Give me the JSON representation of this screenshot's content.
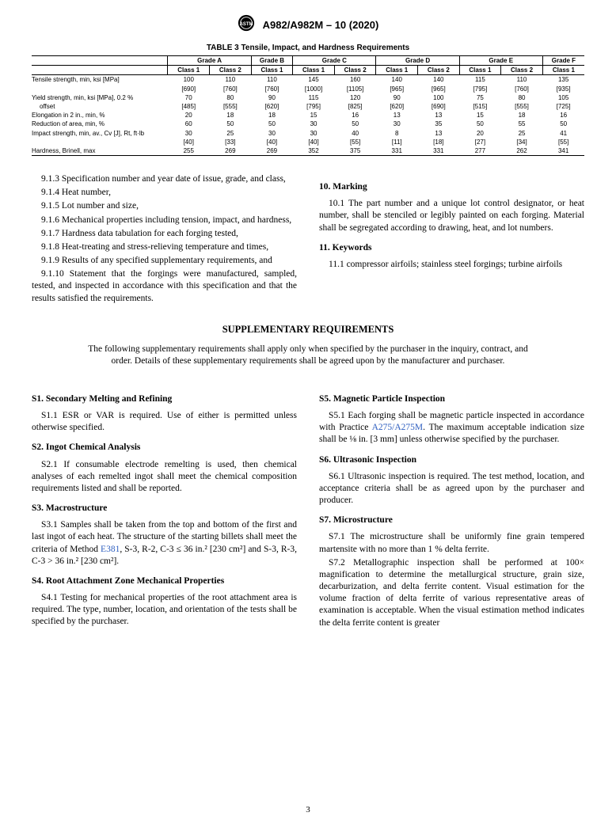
{
  "header": {
    "doc_id": "A982/A982M – 10 (2020)"
  },
  "table": {
    "title": "TABLE 3 Tensile, Impact, and Hardness Requirements",
    "grade_headers": [
      "Grade A",
      "Grade B",
      "Grade C",
      "Grade D",
      "Grade E",
      "Grade F"
    ],
    "class_headers": [
      "Class 1",
      "Class 2",
      "Class 1",
      "Class 1",
      "Class 2",
      "Class 1",
      "Class 2",
      "Class 1",
      "Class 2",
      "Class 1"
    ],
    "rows": [
      {
        "label": "Tensile strength, min, ksi [MPa]",
        "top": [
          "100",
          "110",
          "110",
          "145",
          "160",
          "140",
          "140",
          "115",
          "110",
          "135"
        ],
        "bot": [
          "[690]",
          "[760]",
          "[760]",
          "[1000]",
          "[1105]",
          "[965]",
          "[965]",
          "[795]",
          "[760]",
          "[935]"
        ]
      },
      {
        "label": "Yield strength, min, ksi [MPa], 0.2 %",
        "label2": "offset",
        "top": [
          "70",
          "80",
          "90",
          "115",
          "120",
          "90",
          "100",
          "75",
          "80",
          "105"
        ],
        "bot": [
          "[485]",
          "[555]",
          "[620]",
          "[795]",
          "[825]",
          "[620]",
          "[690]",
          "[515]",
          "[555]",
          "[725]"
        ]
      },
      {
        "label": "Elongation in 2 in., min, %",
        "top": [
          "20",
          "18",
          "18",
          "15",
          "16",
          "13",
          "13",
          "15",
          "18",
          "16"
        ]
      },
      {
        "label": "Reduction of area, min, %",
        "top": [
          "60",
          "50",
          "50",
          "30",
          "50",
          "30",
          "35",
          "50",
          "55",
          "50"
        ]
      },
      {
        "label": "Impact strength, min, av., Cv [J], Rt, ft·lb",
        "top": [
          "30",
          "25",
          "30",
          "30",
          "40",
          "8",
          "13",
          "20",
          "25",
          "41"
        ],
        "bot": [
          "[40]",
          "[33]",
          "[40]",
          "[40]",
          "[55]",
          "[11]",
          "[18]",
          "[27]",
          "[34]",
          "[55]"
        ]
      },
      {
        "label": "Hardness, Brinell, max",
        "top": [
          "255",
          "269",
          "269",
          "352",
          "375",
          "331",
          "331",
          "277",
          "262",
          "341"
        ]
      }
    ]
  },
  "body_left": {
    "p913": "9.1.3 Specification number and year date of issue, grade, and class,",
    "p914": "9.1.4 Heat number,",
    "p915": "9.1.5 Lot number and size,",
    "p916": "9.1.6 Mechanical properties including tension, impact, and hardness,",
    "p917": "9.1.7 Hardness data tabulation for each forging tested,",
    "p918": "9.1.8 Heat-treating and stress-relieving temperature and times,",
    "p919": "9.1.9 Results of any specified supplementary requirements, and",
    "p9110": "9.1.10 Statement that the forgings were manufactured, sampled, tested, and inspected in accordance with this specification and that the results satisfied the requirements."
  },
  "body_right": {
    "h10": "10. Marking",
    "p101": "10.1 The part number and a unique lot control designator, or heat number, shall be stenciled or legibly painted on each forging. Material shall be segregated according to drawing, heat, and lot numbers.",
    "h11": "11. Keywords",
    "p111": "11.1 compressor airfoils; stainless steel forgings; turbine airfoils"
  },
  "supp": {
    "title": "SUPPLEMENTARY REQUIREMENTS",
    "intro": "The following supplementary requirements shall apply only when specified by the purchaser in the inquiry, contract, and order. Details of these supplementary requirements shall be agreed upon by the manufacturer and purchaser."
  },
  "supp_left": {
    "s1h": "S1. Secondary Melting and Refining",
    "s11": "S1.1 ESR or VAR is required. Use of either is permitted unless otherwise specified.",
    "s2h": "S2. Ingot Chemical Analysis",
    "s21": "S2.1 If consumable electrode remelting is used, then chemical analyses of each remelted ingot shall meet the chemical composition requirements listed and shall be reported.",
    "s3h": "S3. Macrostructure",
    "s31a": "S3.1 Samples shall be taken from the top and bottom of the first and last ingot of each heat. The structure of the starting billets shall meet the criteria of Method ",
    "s31_link": "E381",
    "s31b": ", S-3, R-2, C-3 ≤ 36 in.² [230 cm²] and S-3, R-3, C-3 > 36 in.² [230 cm²].",
    "s4h": "S4. Root Attachment Zone Mechanical Properties",
    "s41": "S4.1 Testing for mechanical properties of the root attachment area is required. The type, number, location, and orientation of the tests shall be specified by the purchaser."
  },
  "supp_right": {
    "s5h": "S5. Magnetic Particle Inspection",
    "s51a": "S5.1 Each forging shall be magnetic particle inspected in accordance with Practice ",
    "s51_link": "A275/A275M",
    "s51b": ". The maximum acceptable indication size shall be ⅛ in. [3 mm] unless otherwise specified by the purchaser.",
    "s6h": "S6. Ultrasonic Inspection",
    "s61": "S6.1 Ultrasonic inspection is required. The test method, location, and acceptance criteria shall be as agreed upon by the purchaser and producer.",
    "s7h": "S7. Microstructure",
    "s71": "S7.1 The microstructure shall be uniformly fine grain tempered martensite with no more than 1 % delta ferrite.",
    "s72": "S7.2 Metallographic inspection shall be performed at 100× magnification to determine the metallurgical structure, grain size, decarburization, and delta ferrite content. Visual estimation for the volume fraction of delta ferrite of various representative areas of examination is acceptable. When the visual estimation method indicates the delta ferrite content is greater"
  },
  "page_number": "3"
}
